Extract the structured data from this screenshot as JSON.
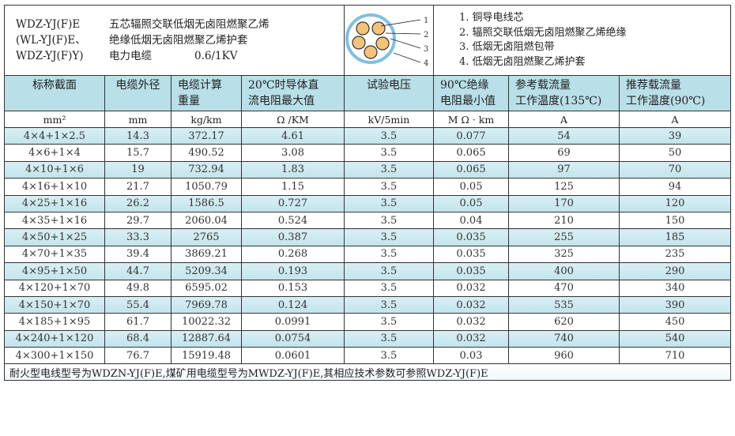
{
  "product": {
    "codes": [
      "WDZ-YJ(F)E",
      "(WL-YJ(F)E、",
      "WDZ-YJ(F)Y)"
    ],
    "description": [
      "五芯辐照交联低烟无卤阻燃聚乙烯",
      "绝缘低烟无卤阻燃聚乙烯护套",
      "电力电缆"
    ],
    "voltage": "0.6/1KV"
  },
  "diagram": {
    "labels": [
      "1",
      "2",
      "3",
      "4"
    ],
    "colors": {
      "sheath": "#7fbfe4",
      "conductor": "#f5c27a"
    }
  },
  "legend": [
    "1. 铜导电线芯",
    "2. 辐照交联低烟无卤阻燃聚乙烯绝缘",
    "3. 低烟无卤阻燃包带",
    "4. 低烟无卤阻燃聚乙烯护套"
  ],
  "headers": [
    [
      "标称截面",
      ""
    ],
    [
      "电缆外径",
      ""
    ],
    [
      "电缆计算",
      "重量"
    ],
    [
      "20℃时导体直",
      "流电阻最大值"
    ],
    [
      "试验电压",
      ""
    ],
    [
      "90℃绝缘",
      "电阻最小值"
    ],
    [
      "参考载流量",
      "工作温度(135℃)"
    ],
    [
      "推荐载流量",
      "工作温度(90℃)"
    ]
  ],
  "units": [
    "mm²",
    "mm",
    "kg/km",
    "Ω /KM",
    "kV/5min",
    "M Ω · km",
    "A",
    "A"
  ],
  "rows": [
    [
      "4×4+1×2.5",
      "14.3",
      "372.17",
      "4.61",
      "3.5",
      "0.077",
      "54",
      "39"
    ],
    [
      "4×6+1×4",
      "15.7",
      "490.52",
      "3.08",
      "3.5",
      "0.065",
      "69",
      "50"
    ],
    [
      "4×10+1×6",
      "19",
      "732.94",
      "1.83",
      "3.5",
      "0.065",
      "97",
      "70"
    ],
    [
      "4×16+1×10",
      "21.7",
      "1050.79",
      "1.15",
      "3.5",
      "0.05",
      "125",
      "94"
    ],
    [
      "4×25+1×16",
      "26.2",
      "1586.5",
      "0.727",
      "3.5",
      "0.05",
      "170",
      "120"
    ],
    [
      "4×35+1×16",
      "29.7",
      "2060.04",
      "0.524",
      "3.5",
      "0.04",
      "210",
      "150"
    ],
    [
      "4×50+1×25",
      "33.3",
      "2765",
      "0.387",
      "3.5",
      "0.035",
      "255",
      "185"
    ],
    [
      "4×70+1×35",
      "39.4",
      "3869.21",
      "0.268",
      "3.5",
      "0.035",
      "325",
      "235"
    ],
    [
      "4×95+1×50",
      "44.7",
      "5209.34",
      "0.193",
      "3.5",
      "0.035",
      "400",
      "290"
    ],
    [
      "4×120+1×70",
      "49.8",
      "6595.02",
      "0.153",
      "3.5",
      "0.032",
      "470",
      "340"
    ],
    [
      "4×150+1×70",
      "55.4",
      "7969.78",
      "0.124",
      "3.5",
      "0.032",
      "535",
      "390"
    ],
    [
      "4×185+1×95",
      "61.7",
      "10022.32",
      "0.0991",
      "3.5",
      "0.032",
      "620",
      "450"
    ],
    [
      "4×240+1×120",
      "68.4",
      "12887.64",
      "0.0754",
      "3.5",
      "0.032",
      "740",
      "540"
    ],
    [
      "4×300+1×150",
      "76.7",
      "15919.48",
      "0.0601",
      "3.5",
      "0.03",
      "960",
      "710"
    ]
  ],
  "footnote": "耐火型电线型号为WDZN-YJ(F)E,煤矿用电缆型号为MWDZ-YJ(F)E,其相应技术参数可参照WDZ-YJ(F)E"
}
